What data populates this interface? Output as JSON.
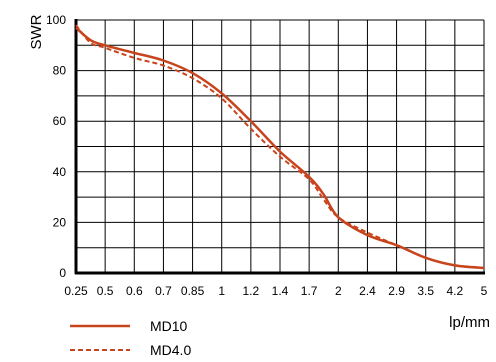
{
  "chart_data": {
    "type": "line",
    "ylabel": "SWR",
    "xlabel": "lp/mm",
    "ylim": [
      0,
      100
    ],
    "y_ticks": [
      0,
      20,
      40,
      60,
      80,
      100
    ],
    "x_ticks": [
      "0.25",
      "0.5",
      "0.6",
      "0.7",
      "0.85",
      "1",
      "1.2",
      "1.4",
      "1.7",
      "2",
      "2.4",
      "2.9",
      "3.5",
      "4.2",
      "5"
    ],
    "grid": true,
    "legend_position": "bottom-left",
    "series": [
      {
        "name": "MD10",
        "style": "solid",
        "color": "#c8441c",
        "x_index": [
          0,
          0.5,
          1,
          2,
          3,
          4,
          5,
          6,
          7,
          8,
          8.5,
          9,
          10,
          11,
          12,
          13,
          14
        ],
        "y": [
          97,
          92,
          90,
          87,
          84,
          79,
          71,
          60,
          48,
          38,
          31,
          22,
          15,
          11,
          6,
          3,
          2
        ]
      },
      {
        "name": "MD4.0",
        "style": "dashed",
        "color": "#c8441c",
        "x_index": [
          0,
          0.5,
          1,
          2,
          3,
          4,
          5,
          6,
          7,
          8,
          8.5,
          9,
          10,
          11,
          12,
          13,
          14
        ],
        "y": [
          98,
          91,
          89,
          85,
          82,
          77,
          69,
          57,
          46,
          37,
          29,
          22,
          16,
          11,
          6,
          3,
          2
        ]
      }
    ]
  }
}
